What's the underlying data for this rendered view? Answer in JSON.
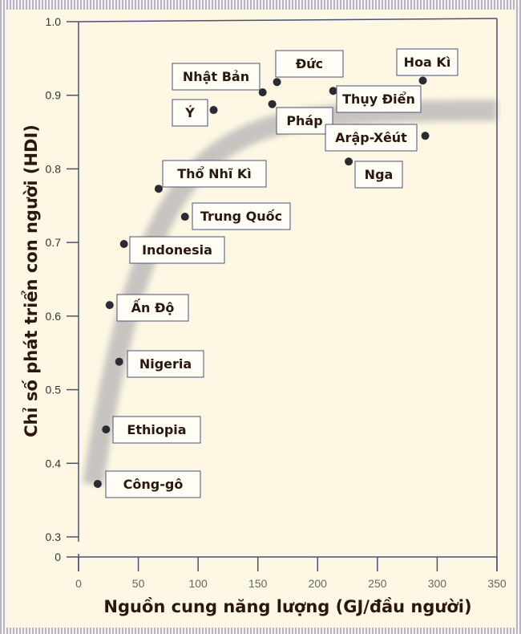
{
  "chart_data": {
    "type": "scatter",
    "title": "",
    "xlabel": "Nguồn cung năng lượng (GJ/đầu người)",
    "ylabel": "Chỉ số phát triển con người (HDI)",
    "xlim": [
      0,
      350
    ],
    "ylim": [
      0.3,
      1.0
    ],
    "y_axis_break": "0",
    "x_ticks": [
      "0",
      "50",
      "100",
      "150",
      "200",
      "250",
      "300",
      "350"
    ],
    "y_ticks": [
      "0.3",
      "0.4",
      "0.5",
      "0.6",
      "0.7",
      "0.8",
      "0.9",
      "1.0"
    ],
    "grid": false,
    "points": [
      {
        "label": "Hoa Kì",
        "x": 288,
        "y": 0.92
      },
      {
        "label": "Đức",
        "x": 166,
        "y": 0.918
      },
      {
        "label": "Nhật Bản",
        "x": 154,
        "y": 0.904
      },
      {
        "label": "Thụy Điển",
        "x": 213,
        "y": 0.906
      },
      {
        "label": "Ý",
        "x": 113,
        "y": 0.88
      },
      {
        "label": "Pháp",
        "x": 162,
        "y": 0.888
      },
      {
        "label": "Arập-Xêút",
        "x": 290,
        "y": 0.845
      },
      {
        "label": "Nga",
        "x": 226,
        "y": 0.81
      },
      {
        "label": "Thổ Nhĩ Kì",
        "x": 67,
        "y": 0.773
      },
      {
        "label": "Trung Quốc",
        "x": 89,
        "y": 0.735
      },
      {
        "label": "Indonesia",
        "x": 38,
        "y": 0.698
      },
      {
        "label": "Ấn Độ",
        "x": 26,
        "y": 0.615
      },
      {
        "label": "Nigeria",
        "x": 34,
        "y": 0.538
      },
      {
        "label": "Ethiopia",
        "x": 23,
        "y": 0.446
      },
      {
        "label": "Công-gô",
        "x": 16,
        "y": 0.372
      }
    ],
    "colors": {
      "point": "#2b2b33",
      "band": "#9a9aa6",
      "box_border": "#4a5278",
      "background": "#fef7e3"
    }
  }
}
